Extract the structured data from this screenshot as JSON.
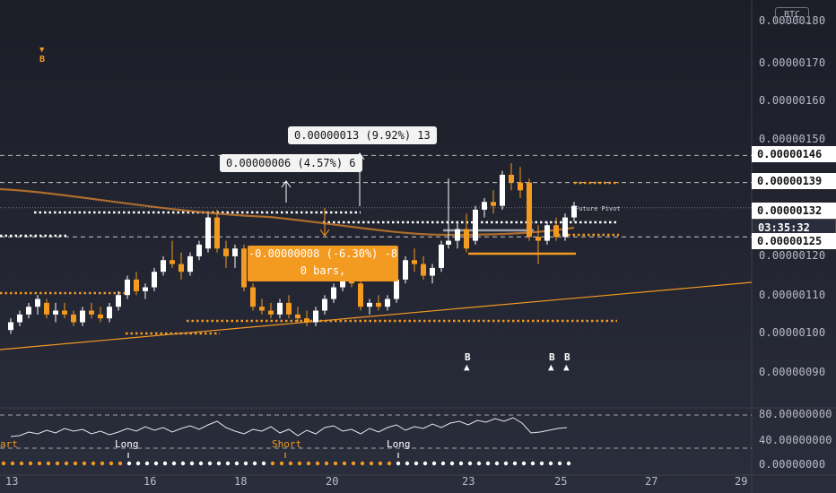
{
  "symbol_badge": "BTC",
  "price_axis": [
    {
      "label": "0.00000180",
      "price": 180
    },
    {
      "label": "0.00000170",
      "price": 170
    },
    {
      "label": "0.00000160",
      "price": 160
    },
    {
      "label": "0.00000150",
      "price": 150
    },
    {
      "label": "0.00000120",
      "price": 120
    },
    {
      "label": "0.00000110",
      "price": 110
    },
    {
      "label": "0.00000100",
      "price": 100
    },
    {
      "label": "0.00000090",
      "price": 90
    }
  ],
  "price_tags": {
    "resistance_high": "0.00000146",
    "resistance_mid": "0.00000139",
    "last_price": "0.00000132",
    "countdown": "03:35:32",
    "support": "0.00000125"
  },
  "indicator_axis": [
    "80.00000000",
    "40.00000000",
    "0.00000000"
  ],
  "time_axis": [
    "13",
    "16",
    "18",
    "20",
    "23",
    "25",
    "27",
    "29"
  ],
  "measure_labels": {
    "up_large": "0.00000013 (9.92%) 13",
    "up_small": "0.00000006 (4.57%) 6",
    "down_line1": "-0.00000008 (-6.30%) -8",
    "down_line2": "0 bars,"
  },
  "future_pivot_label": "Future Pivot",
  "signals": {
    "top_sell_marker": "B",
    "buy_markers": [
      "B",
      "B",
      "B"
    ]
  },
  "strategy_labels": {
    "start": "art",
    "long_1": "Long",
    "short": "Short",
    "long_2": "Long"
  },
  "colors": {
    "background": "#1d1f2b",
    "accent_orange": "#f39a21",
    "candle_white": "#ffffff",
    "candle_orange": "#f39a21",
    "text": "#b9bcc7"
  }
}
